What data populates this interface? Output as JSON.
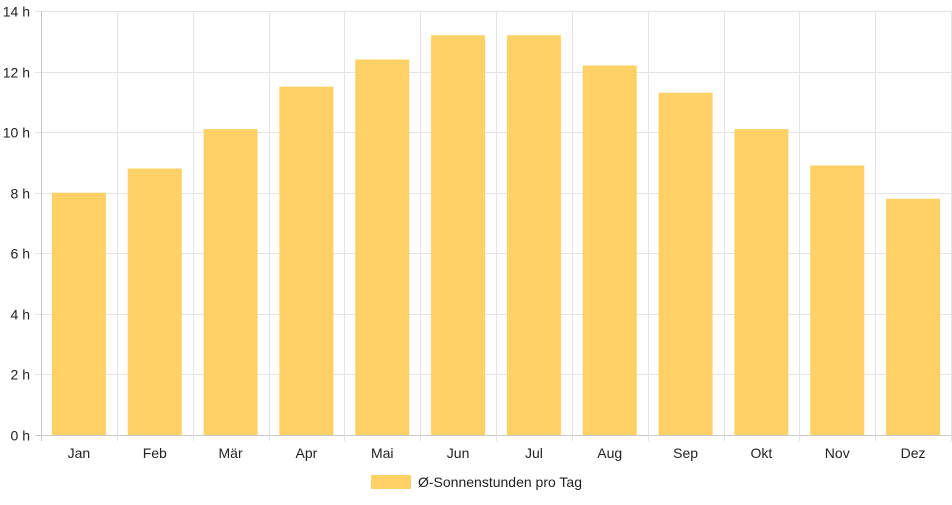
{
  "chart_data": {
    "type": "bar",
    "categories": [
      "Jan",
      "Feb",
      "Mär",
      "Apr",
      "Mai",
      "Jun",
      "Jul",
      "Aug",
      "Sep",
      "Okt",
      "Nov",
      "Dez"
    ],
    "series": [
      {
        "name": "Ø-Sonnenstunden pro Tag",
        "color": "#fdd166",
        "values": [
          8.0,
          8.8,
          10.1,
          11.5,
          12.4,
          13.2,
          13.2,
          12.2,
          11.3,
          10.1,
          8.9,
          7.8
        ]
      }
    ],
    "y_tick_labels": [
      "0 h",
      "2 h",
      "4 h",
      "6 h",
      "8 h",
      "10 h",
      "12 h",
      "14 h"
    ],
    "y_ticks": [
      0,
      2,
      4,
      6,
      8,
      10,
      12,
      14
    ],
    "ylim": [
      0,
      14
    ],
    "grid": true,
    "legend_position": "bottom"
  }
}
